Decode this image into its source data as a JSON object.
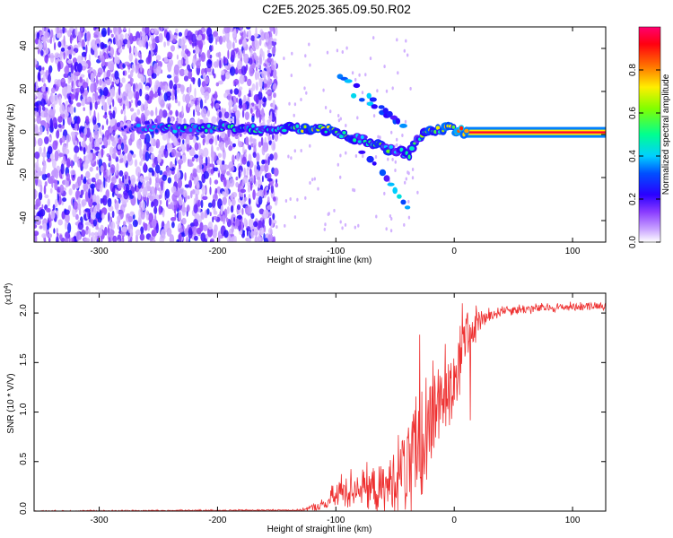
{
  "title": "C2E5.2025.365.09.50.R02",
  "chart_data": [
    {
      "type": "heatmap",
      "name": "spectrogram",
      "xlabel": "Height of straight line (km)",
      "ylabel": "Frequency (Hz)",
      "xlim": [
        -355,
        128
      ],
      "ylim": [
        -50,
        50
      ],
      "xticks": [
        -300,
        -200,
        -100,
        0,
        100
      ],
      "yticks": [
        -40,
        -20,
        0,
        20,
        40
      ],
      "xtick_labels": [
        "-300",
        "-200",
        "-100",
        "0",
        "100"
      ],
      "ytick_labels": [
        "-40",
        "-20",
        "0",
        "20",
        "40"
      ],
      "colorbar": {
        "label": "Normalized spectral amplitude",
        "range": [
          0,
          1
        ],
        "ticks": [
          0.0,
          0.2,
          0.4,
          0.6,
          0.8
        ],
        "tick_labels": [
          "0.0",
          "0.2",
          "0.4",
          "0.6",
          "0.8"
        ],
        "colors": [
          "#ffffff",
          "#b266ff",
          "#6a00ff",
          "#0000ff",
          "#00c8ff",
          "#00ff80",
          "#80ff00",
          "#ffff00",
          "#ff8000",
          "#ff0000",
          "#ff0080"
        ]
      },
      "noise_region_x": [
        -355,
        -150
      ],
      "carrier_track": [
        {
          "x": -280,
          "y": 3,
          "a": 0.25
        },
        {
          "x": -240,
          "y": 3,
          "a": 0.45
        },
        {
          "x": -200,
          "y": 3,
          "a": 0.45
        },
        {
          "x": -160,
          "y": 3,
          "a": 0.45
        },
        {
          "x": -150,
          "y": 3,
          "a": 0.55
        },
        {
          "x": -130,
          "y": 3,
          "a": 0.6
        },
        {
          "x": -110,
          "y": 3,
          "a": 0.6
        },
        {
          "x": -100,
          "y": 1,
          "a": 0.6
        },
        {
          "x": -80,
          "y": -2,
          "a": 0.55
        },
        {
          "x": -60,
          "y": -6,
          "a": 0.55
        },
        {
          "x": -45,
          "y": -8,
          "a": 0.5
        },
        {
          "x": -38,
          "y": -10,
          "a": 0.45
        },
        {
          "x": -33,
          "y": -2,
          "a": 0.5
        },
        {
          "x": -20,
          "y": 1,
          "a": 0.6
        },
        {
          "x": -5,
          "y": 3,
          "a": 0.65
        },
        {
          "x": 10,
          "y": 1,
          "a": 0.85
        },
        {
          "x": 128,
          "y": 1,
          "a": 0.95
        }
      ],
      "secondary_tracks": [
        [
          {
            "x": -85,
            "y": 18
          },
          {
            "x": -70,
            "y": 14
          },
          {
            "x": -55,
            "y": 8
          },
          {
            "x": -40,
            "y": 3
          }
        ],
        [
          {
            "x": -100,
            "y": 28
          },
          {
            "x": -80,
            "y": 22
          },
          {
            "x": -60,
            "y": 12
          },
          {
            "x": -45,
            "y": 5
          }
        ],
        [
          {
            "x": -85,
            "y": -5
          },
          {
            "x": -70,
            "y": -12
          },
          {
            "x": -60,
            "y": -18
          },
          {
            "x": -45,
            "y": -30
          },
          {
            "x": -38,
            "y": -35
          }
        ]
      ]
    },
    {
      "type": "line",
      "name": "snr",
      "xlabel": "Height of straight line (km)",
      "ylabel": "SNR (10 * V/V)",
      "multiplier": "(x10⁴)",
      "xlim": [
        -355,
        128
      ],
      "ylim": [
        0,
        2.2
      ],
      "xticks": [
        -300,
        -200,
        -100,
        0,
        100
      ],
      "yticks": [
        0.0,
        0.5,
        1.0,
        1.5,
        2.0
      ],
      "xtick_labels": [
        "-300",
        "-200",
        "-100",
        "0",
        "100"
      ],
      "ytick_labels": [
        "0.0",
        "0.5",
        "1.0",
        "1.5",
        "2.0"
      ],
      "color": "#ee3030",
      "envelope": [
        {
          "x": -355,
          "base": 0.0,
          "amp": 0.01
        },
        {
          "x": -130,
          "base": 0.01,
          "amp": 0.01
        },
        {
          "x": -110,
          "base": 0.06,
          "amp": 0.08
        },
        {
          "x": -95,
          "base": 0.2,
          "amp": 0.25
        },
        {
          "x": -80,
          "base": 0.25,
          "amp": 0.25
        },
        {
          "x": -60,
          "base": 0.2,
          "amp": 0.3
        },
        {
          "x": -45,
          "base": 0.4,
          "amp": 0.5
        },
        {
          "x": -35,
          "base": 0.5,
          "amp": 0.9
        },
        {
          "x": -25,
          "base": 0.7,
          "amp": 0.9
        },
        {
          "x": -15,
          "base": 1.1,
          "amp": 0.6
        },
        {
          "x": 0,
          "base": 1.35,
          "amp": 0.6
        },
        {
          "x": 10,
          "base": 1.75,
          "amp": 0.35
        },
        {
          "x": 20,
          "base": 1.9,
          "amp": 0.15
        },
        {
          "x": 40,
          "base": 2.03,
          "amp": 0.07
        },
        {
          "x": 128,
          "base": 2.08,
          "amp": 0.05
        }
      ]
    }
  ]
}
